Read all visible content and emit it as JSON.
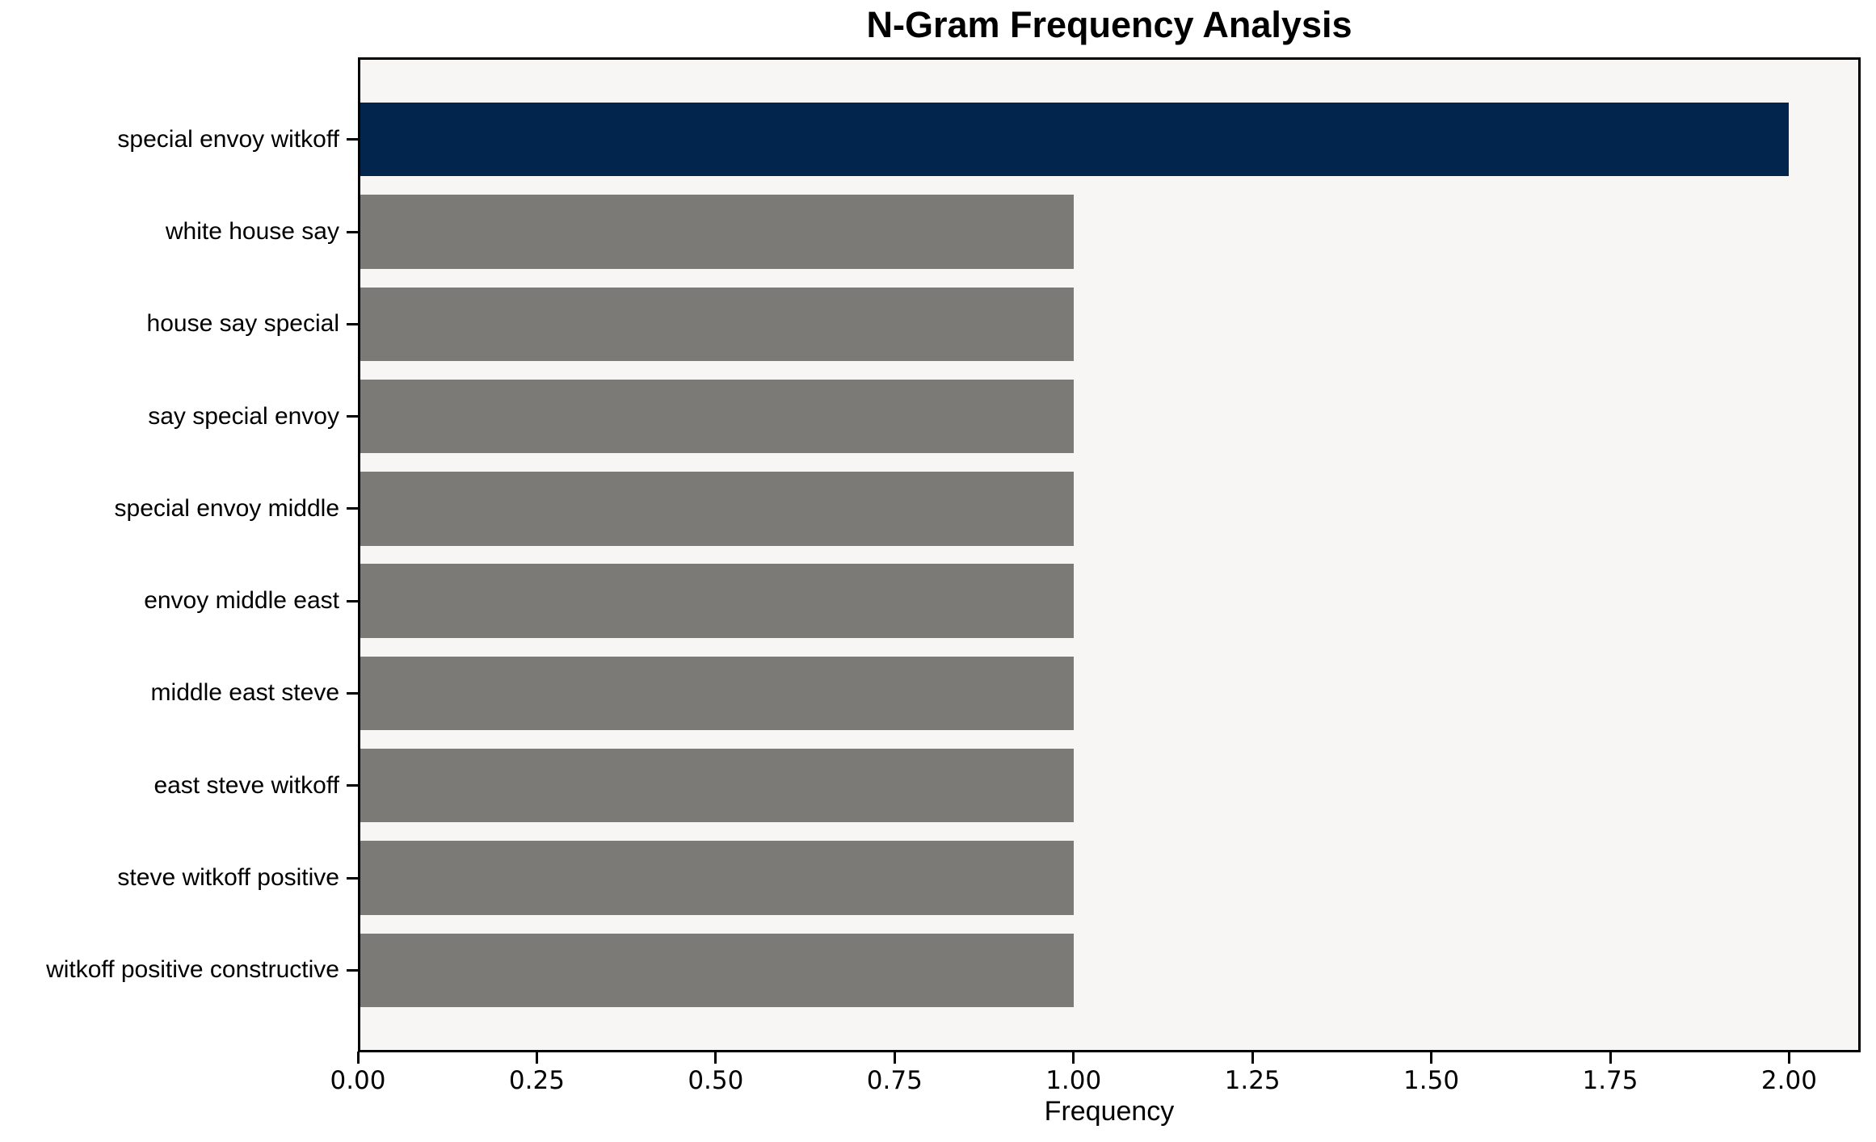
{
  "chart_data": {
    "type": "bar",
    "orientation": "horizontal",
    "title": "N-Gram Frequency Analysis",
    "xlabel": "Frequency",
    "ylabel": "",
    "categories": [
      "special envoy witkoff",
      "white house say",
      "house say special",
      "say special envoy",
      "special envoy middle",
      "envoy middle east",
      "middle east steve",
      "east steve witkoff",
      "steve witkoff positive",
      "witkoff positive constructive"
    ],
    "values": [
      2,
      1,
      1,
      1,
      1,
      1,
      1,
      1,
      1,
      1
    ],
    "highlight_index": 0,
    "xlim": [
      0,
      2.1
    ],
    "xticks": {
      "values": [
        0,
        0.25,
        0.5,
        0.75,
        1.0,
        1.25,
        1.5,
        1.75,
        2.0
      ],
      "labels": [
        "0.00",
        "0.25",
        "0.50",
        "0.75",
        "1.00",
        "1.25",
        "1.50",
        "1.75",
        "2.00"
      ]
    },
    "grid": false,
    "legend": false,
    "colors": {
      "highlight_bar": "#02254e",
      "default_bar": "#7b7a76",
      "plot_background": "#f7f6f4",
      "spine": "#000000",
      "text": "#000000"
    }
  }
}
